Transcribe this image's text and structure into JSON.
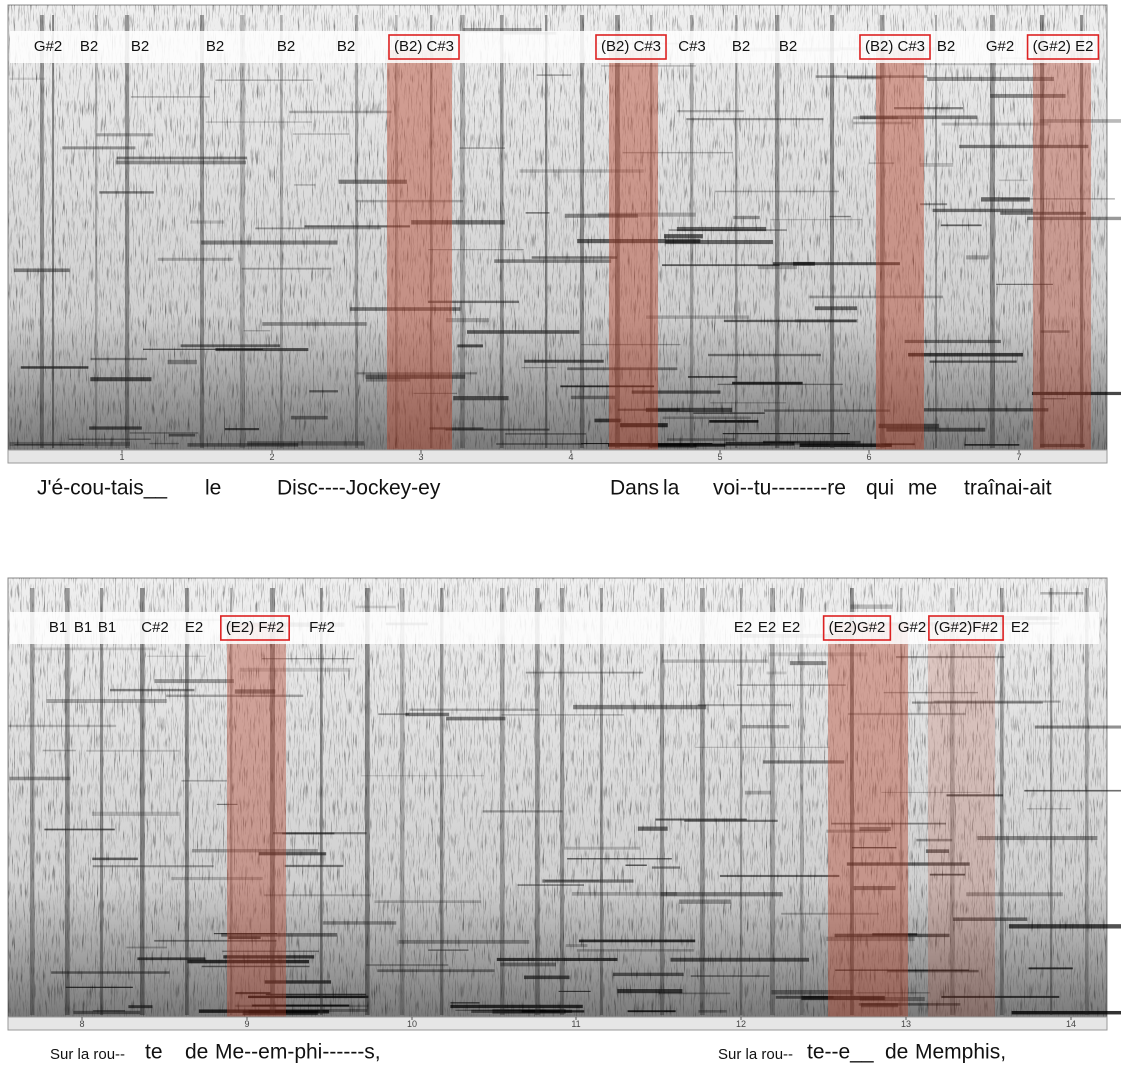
{
  "panels": [
    {
      "notes": [
        {
          "label": "G#2",
          "boxed": false
        },
        {
          "label": "B2",
          "boxed": false
        },
        {
          "label": "B2",
          "boxed": false
        },
        {
          "label": "B2",
          "boxed": false
        },
        {
          "label": "B2",
          "boxed": false
        },
        {
          "label": "B2",
          "boxed": false
        },
        {
          "label": "(B2) C#3",
          "boxed": true
        },
        {
          "label": "(B2) C#3",
          "boxed": true
        },
        {
          "label": "C#3",
          "boxed": false
        },
        {
          "label": "B2",
          "boxed": false
        },
        {
          "label": "B2",
          "boxed": false
        },
        {
          "label": "(B2) C#3",
          "boxed": true
        },
        {
          "label": "B2",
          "boxed": false
        },
        {
          "label": "G#2",
          "boxed": false
        },
        {
          "label": "(G#2) E2",
          "boxed": true
        }
      ],
      "ticks": [
        1,
        2,
        3,
        4,
        5,
        6,
        7
      ],
      "lyrics": [
        {
          "text": "J'é-cou-tais__",
          "small": false
        },
        {
          "text": "le",
          "small": false
        },
        {
          "text": "Disc----Jockey-ey",
          "small": false
        },
        {
          "text": "Dans",
          "small": false
        },
        {
          "text": "la",
          "small": false
        },
        {
          "text": "voi--tu--------re",
          "small": false
        },
        {
          "text": "qui",
          "small": false
        },
        {
          "text": "me",
          "small": false
        },
        {
          "text": "traînai-ait",
          "small": false
        }
      ]
    },
    {
      "notes": [
        {
          "label": "B1",
          "boxed": false
        },
        {
          "label": "B1",
          "boxed": false
        },
        {
          "label": "B1",
          "boxed": false
        },
        {
          "label": "C#2",
          "boxed": false
        },
        {
          "label": "E2",
          "boxed": false
        },
        {
          "label": "(E2) F#2",
          "boxed": true
        },
        {
          "label": "F#2",
          "boxed": false
        },
        {
          "label": "E2",
          "boxed": false
        },
        {
          "label": "E2",
          "boxed": false
        },
        {
          "label": "E2",
          "boxed": false
        },
        {
          "label": "(E2)G#2",
          "boxed": true
        },
        {
          "label": "G#2",
          "boxed": false
        },
        {
          "label": "(G#2)F#2",
          "boxed": true
        },
        {
          "label": "E2",
          "boxed": false
        }
      ],
      "ticks": [
        8,
        9,
        10,
        11,
        12,
        13,
        14
      ],
      "lyrics": [
        {
          "text": "Sur la rou--",
          "small": true
        },
        {
          "text": "te",
          "small": false
        },
        {
          "text": "de",
          "small": false
        },
        {
          "text": "Me--em-phi------s,",
          "small": false
        },
        {
          "text": "Sur la rou--",
          "small": true
        },
        {
          "text": "te--e__",
          "small": false
        },
        {
          "text": "de",
          "small": false
        },
        {
          "text": "Memphis,",
          "small": false
        }
      ]
    }
  ]
}
